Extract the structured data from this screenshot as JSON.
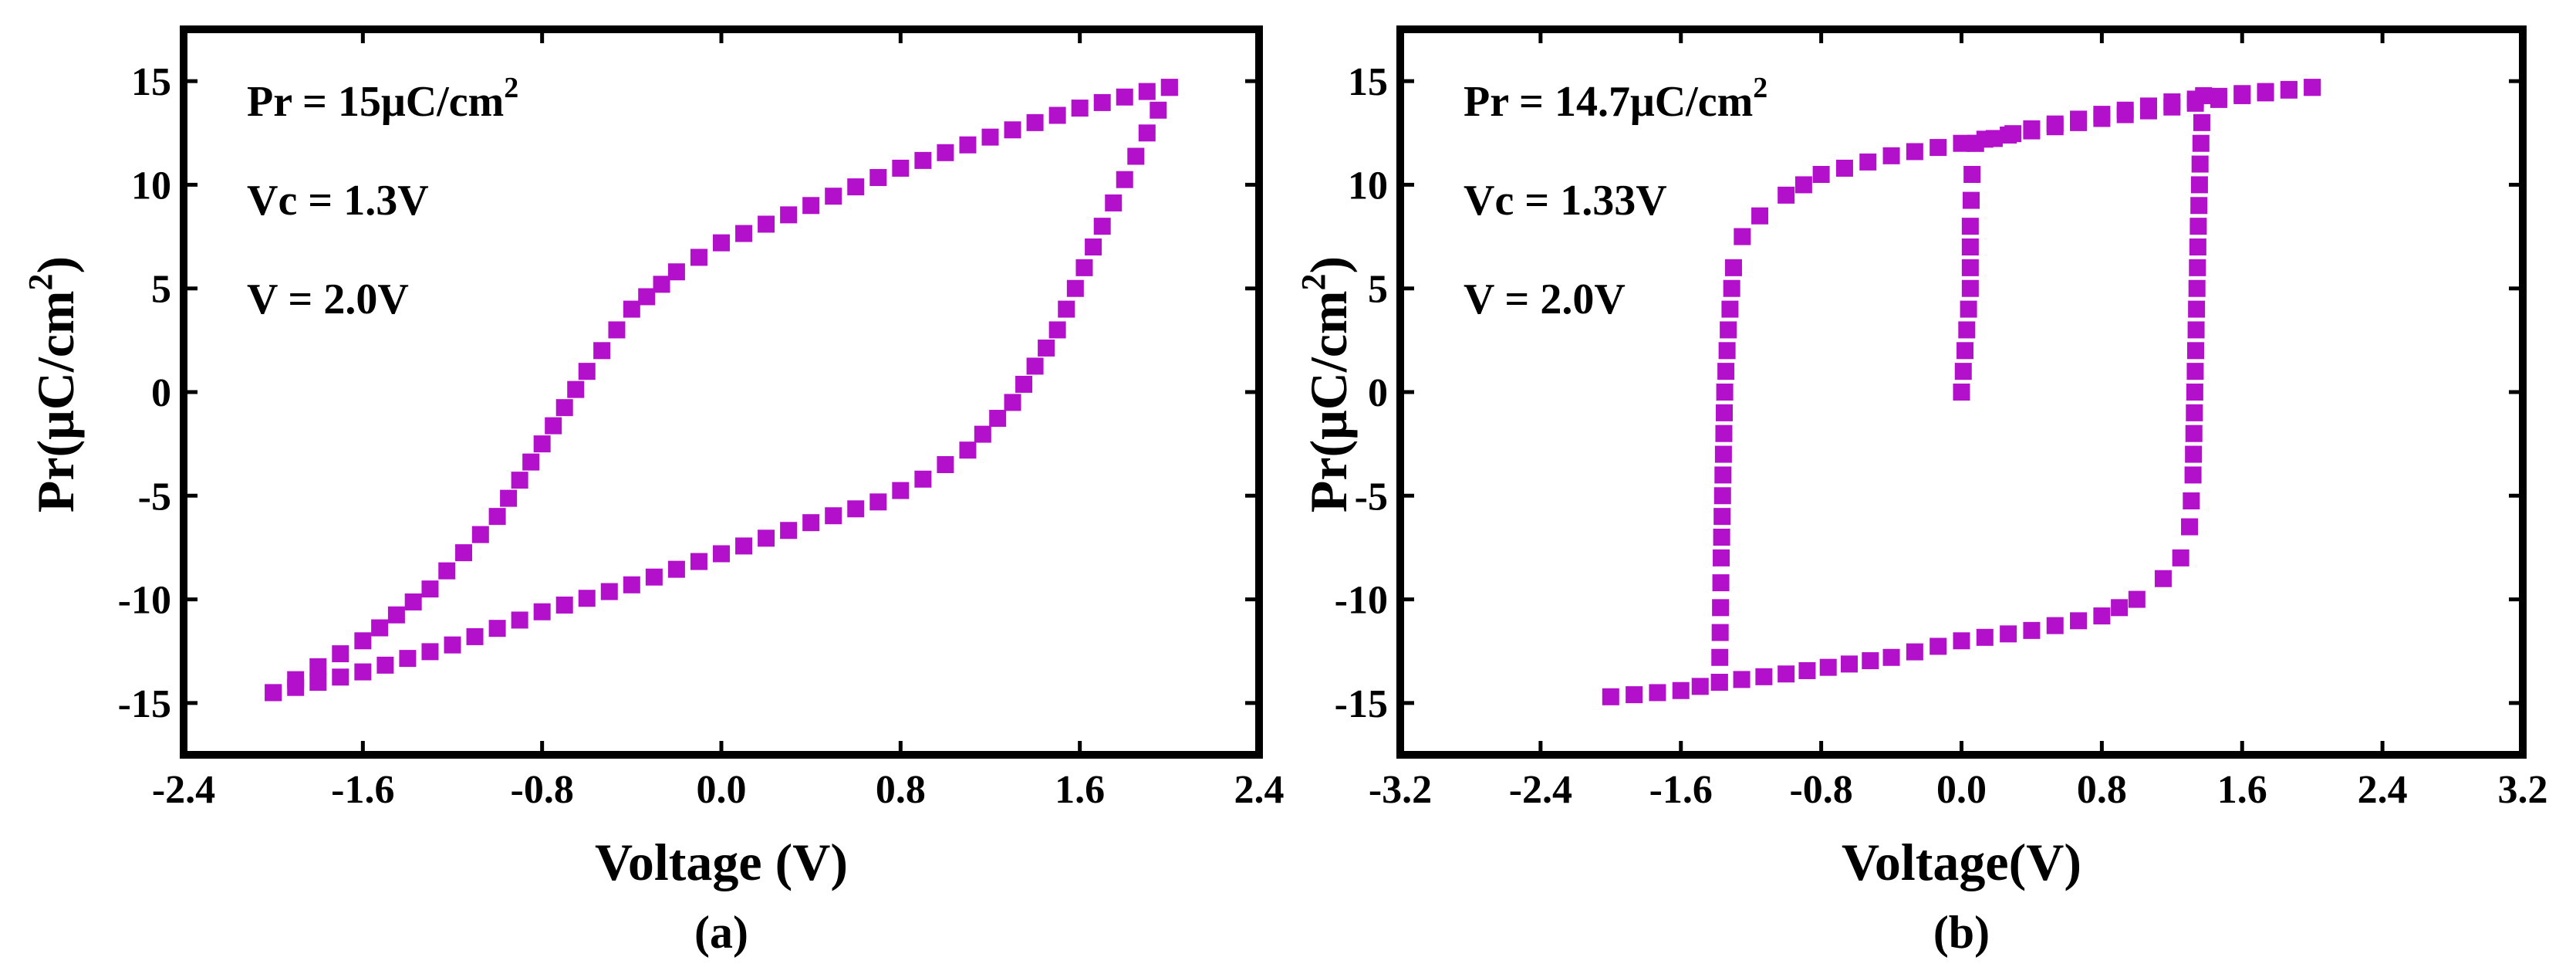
{
  "chart_data": [
    {
      "type": "scatter",
      "panel_label": "(a)",
      "xlabel": "Voltage (V)",
      "ylabel_main": "Pr(μC/cm",
      "ylabel_sup": "2",
      "ylabel_close": ")",
      "xlim": [
        -2.4,
        2.4
      ],
      "ylim": [
        -17.5,
        17.5
      ],
      "xticks": [
        -2.4,
        -1.6,
        -0.8,
        0.0,
        0.8,
        1.6,
        2.4
      ],
      "xtick_labels": [
        "-2.4",
        "-1.6",
        "-0.8",
        "0.0",
        "0.8",
        "1.6",
        "2.4"
      ],
      "yticks": [
        -15,
        -10,
        -5,
        0,
        5,
        10,
        15
      ],
      "ytick_labels": [
        "-15",
        "-10",
        "-5",
        "0",
        "5",
        "10",
        "15"
      ],
      "annotations": [
        {
          "main": "Pr = 15μC/cm",
          "sup": "2"
        },
        {
          "main": "Vc = 1.3V",
          "sup": ""
        },
        {
          "main": "V = 2.0V",
          "sup": ""
        }
      ],
      "color": "#b310cc",
      "series": [
        {
          "path": "upper",
          "x": [
            -2.0,
            -1.6,
            -1.3,
            -1.0,
            -0.8,
            -0.6,
            -0.4,
            -0.2,
            0.0,
            0.4,
            0.8,
            1.2,
            1.6,
            1.9,
            2.0
          ],
          "y": [
            -14.5,
            -12.0,
            -9.5,
            -6.0,
            -2.5,
            1.0,
            4.0,
            5.8,
            7.2,
            9.0,
            10.8,
            12.3,
            13.7,
            14.5,
            14.7
          ]
        },
        {
          "path": "lower",
          "x": [
            2.0,
            1.9,
            1.7,
            1.5,
            1.3,
            1.1,
            0.9,
            0.7,
            0.4,
            0.0,
            -0.4,
            -0.8,
            -1.2,
            -1.6,
            -2.0
          ],
          "y": [
            14.7,
            12.5,
            8.0,
            3.0,
            -0.5,
            -2.8,
            -4.2,
            -5.3,
            -6.3,
            -7.8,
            -9.3,
            -10.6,
            -12.2,
            -13.5,
            -14.5
          ]
        }
      ]
    },
    {
      "type": "scatter",
      "panel_label": "(b)",
      "xlabel": "Voltage(V)",
      "ylabel_main": "Pr(μC/cm",
      "ylabel_sup": "2",
      "ylabel_close": ")",
      "xlim": [
        -3.2,
        3.2
      ],
      "ylim": [
        -17.5,
        17.5
      ],
      "xticks": [
        -3.2,
        -2.4,
        -1.6,
        -0.8,
        0.0,
        0.8,
        1.6,
        2.4,
        3.2
      ],
      "xtick_labels": [
        "-3.2",
        "-2.4",
        "-1.6",
        "-0.8",
        "0.0",
        "0.8",
        "1.6",
        "2.4",
        "3.2"
      ],
      "yticks": [
        -15,
        -10,
        -5,
        0,
        5,
        10,
        15
      ],
      "ytick_labels": [
        "-15",
        "-10",
        "-5",
        "0",
        "5",
        "10",
        "15"
      ],
      "annotations": [
        {
          "main": "Pr = 14.7μC/cm",
          "sup": "2"
        },
        {
          "main": "Vc = 1.33V",
          "sup": ""
        },
        {
          "main": "V = 2.0V",
          "sup": ""
        }
      ],
      "color": "#b310cc",
      "series": [
        {
          "path": "initial",
          "x": [
            0.0,
            0.02,
            0.05,
            0.05,
            0.06,
            0.08
          ],
          "y": [
            0.0,
            2.0,
            5.0,
            8.0,
            10.5,
            12.0
          ]
        },
        {
          "path": "upper-forward",
          "x": [
            0.08,
            0.4,
            0.8,
            1.2,
            1.6,
            2.0
          ],
          "y": [
            12.0,
            12.7,
            13.4,
            14.0,
            14.4,
            14.7
          ]
        },
        {
          "path": "upper-backward",
          "x": [
            2.0,
            1.6,
            0.8,
            0.0,
            -0.4,
            -0.8,
            -1.0,
            -1.15,
            -1.25,
            -1.3,
            -1.33,
            -1.35,
            -1.36,
            -1.37,
            -1.38
          ],
          "y": [
            14.7,
            14.3,
            13.2,
            12.0,
            11.4,
            10.5,
            9.5,
            8.5,
            7.5,
            6.0,
            3.0,
            0.0,
            -4.0,
            -8.0,
            -14.0
          ]
        },
        {
          "path": "lower-forward",
          "x": [
            -2.0,
            -1.6,
            -1.38,
            -1.0,
            -0.4,
            0.0,
            0.4,
            0.8,
            1.0,
            1.15,
            1.25,
            1.3,
            1.32,
            1.33,
            1.34,
            1.35,
            1.36,
            1.37,
            1.38
          ],
          "y": [
            -14.7,
            -14.4,
            -14.0,
            -13.6,
            -12.8,
            -12.0,
            -11.5,
            -10.8,
            -10.0,
            -9.0,
            -8.0,
            -6.5,
            -4.0,
            0.0,
            4.0,
            8.0,
            11.0,
            13.0,
            14.3
          ]
        }
      ]
    }
  ]
}
